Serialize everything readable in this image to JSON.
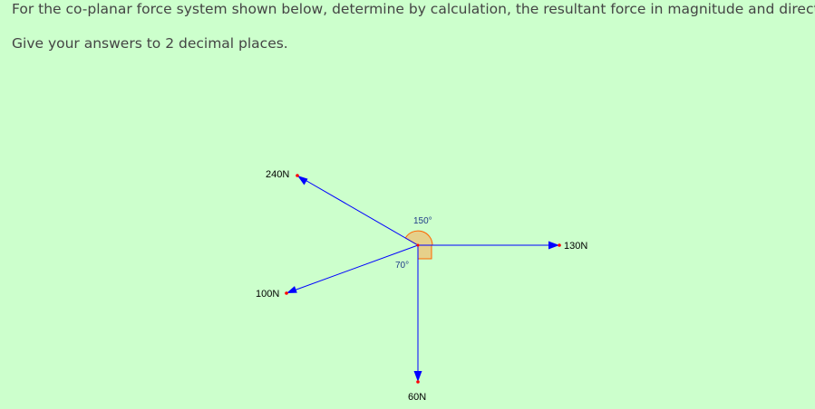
{
  "question": {
    "line1": "For the co-planar force system shown below, determine by calculation, the resultant force in magnitude and direction.",
    "line2": "Give your answers to 2 decimal places."
  },
  "diagram": {
    "colors": {
      "force_line": "#0000ff",
      "arrow_head": "#0000ff",
      "end_point": "#ff0000",
      "angle_fill": "#e6d08a",
      "angle_stroke": "#ff6600",
      "origin": "#ff0000"
    },
    "forces": [
      {
        "id": "f240",
        "label": "240N"
      },
      {
        "id": "f130",
        "label": "130N"
      },
      {
        "id": "f100",
        "label": "100N"
      },
      {
        "id": "f60",
        "label": "60N"
      }
    ],
    "angles": [
      {
        "id": "a150",
        "label": "150°"
      },
      {
        "id": "a70",
        "label": "70°"
      }
    ]
  }
}
